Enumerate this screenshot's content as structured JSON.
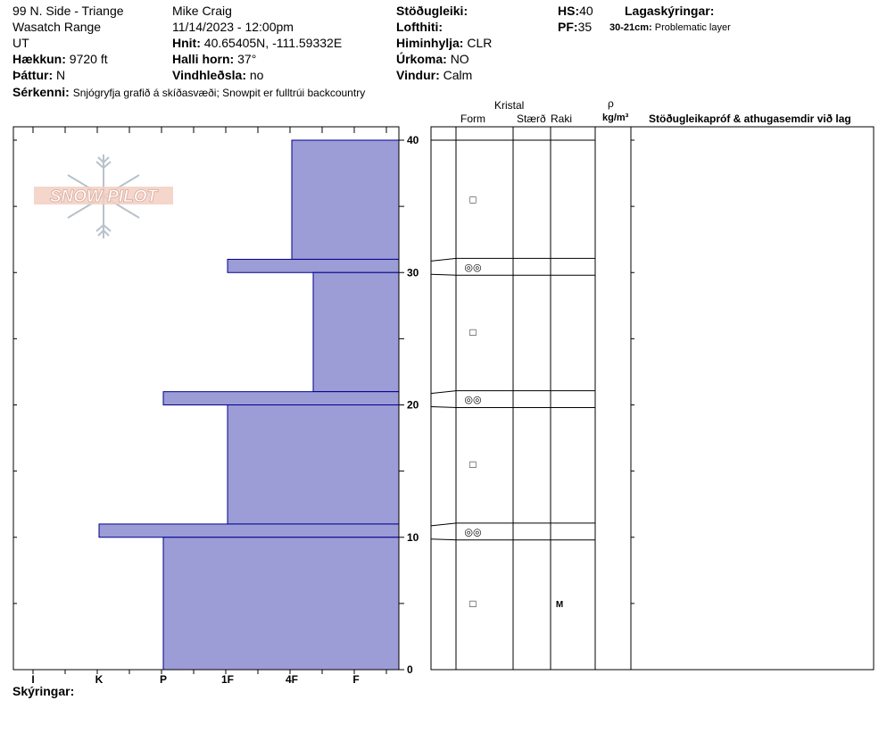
{
  "header": {
    "col1": [
      "99 N. Side - Triange",
      "Wasatch Range",
      "UT"
    ],
    "elevation_label": "Hækkun:",
    "elevation": "9720 ft",
    "aspect_label": "Þáttur:",
    "aspect": "N",
    "observer": "Mike Craig",
    "datetime": "11/14/2023 - 12:00pm",
    "coords_label": "Hnit:",
    "coords": "40.65405N, -111.59332E",
    "slope_label": "Halli horn:",
    "slope": "37°",
    "wind_loading_label": "Vindhleðsla:",
    "wind_loading": "no",
    "stability_label": "Stöðugleiki:",
    "stability": "",
    "airtemp_label": "Lofthiti:",
    "airtemp": "",
    "sky_label": "Himinhylja:",
    "sky": "CLR",
    "precip_label": "Úrkoma:",
    "precip": "NO",
    "wind_label": "Vindur:",
    "wind": "Calm",
    "hs_label": "HS:",
    "hs": "40",
    "pf_label": "PF:",
    "pf": "35",
    "layer_notes_label": "Lagaskýringar:",
    "layer_note_range": "30-21cm:",
    "layer_note_text": "Problematic layer",
    "features_label": "Sérkenni:",
    "features": "Snjógryfja grafið á skíðasvæði; Snowpit er fulltrúi backcountry",
    "comments_label": "Skýringar:",
    "logo_text": "SNOW PILOT"
  },
  "columns": {
    "crystal": "Kristal",
    "form": "Form",
    "size": "Stærð",
    "moisture": "Raki",
    "rho": "ρ",
    "density_unit": "kg/m³",
    "stability_tests": "Stöðugleikapróf & athugasemdir við lag"
  },
  "colors": {
    "hardness_fill": "#9c9cd7",
    "hardness_stroke": "#00008b"
  },
  "chart_data": {
    "type": "bar",
    "title": "",
    "x_axis": {
      "ticks": [
        "I",
        "K",
        "P",
        "1F",
        "4F",
        "F"
      ]
    },
    "y_axis": {
      "range": [
        0,
        40
      ],
      "ticks": [
        0,
        10,
        20,
        30,
        40
      ],
      "unit": "cm"
    },
    "hardness_layers": [
      {
        "bottom": 31,
        "top": 40,
        "hardness": "4F"
      },
      {
        "bottom": 30,
        "top": 31,
        "hardness": "1F"
      },
      {
        "bottom": 21,
        "top": 30,
        "hardness": "4F-"
      },
      {
        "bottom": 20,
        "top": 21,
        "hardness": "P"
      },
      {
        "bottom": 11,
        "top": 20,
        "hardness": "1F"
      },
      {
        "bottom": 10,
        "top": 11,
        "hardness": "K"
      },
      {
        "bottom": 0,
        "top": 10,
        "hardness": "P"
      }
    ],
    "layer_boundaries": [
      31,
      30,
      21,
      20,
      11,
      10
    ],
    "grain_symbols": [
      {
        "height": 35.5,
        "form": "□"
      },
      {
        "height": 30.5,
        "form": "◎◎"
      },
      {
        "height": 25.5,
        "form": "□"
      },
      {
        "height": 20.5,
        "form": "◎◎"
      },
      {
        "height": 15.5,
        "form": "□"
      },
      {
        "height": 10.5,
        "form": "◎◎"
      },
      {
        "height": 5,
        "form": "□",
        "moisture": "M"
      }
    ]
  }
}
